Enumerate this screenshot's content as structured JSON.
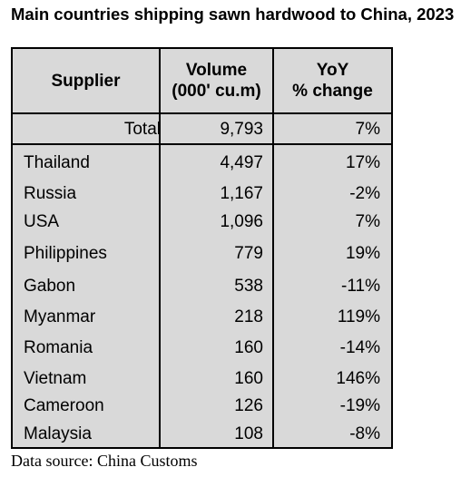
{
  "title": "Main countries shipping sawn hardwood to China, 2023",
  "source": "Data source: China Customs",
  "chart_data": {
    "type": "table",
    "title": "Main countries shipping sawn hardwood to China, 2023",
    "columns": [
      {
        "label": "Supplier"
      },
      {
        "label_line1": "Volume",
        "label_line2": "(000' cu.m)"
      },
      {
        "label_line1": "YoY",
        "label_line2": "% change"
      }
    ],
    "total": {
      "supplier": "Total",
      "volume": "9,793",
      "yoy": "7%"
    },
    "rows": [
      {
        "supplier": "Thailand",
        "volume": "4,497",
        "yoy": "17%"
      },
      {
        "supplier": "Russia",
        "volume": "1,167",
        "yoy": "-2%"
      },
      {
        "supplier": "USA",
        "volume": "1,096",
        "yoy": "7%"
      },
      {
        "supplier": "Philippines",
        "volume": "779",
        "yoy": "19%"
      },
      {
        "supplier": "Gabon",
        "volume": "538",
        "yoy": "-11%"
      },
      {
        "supplier": "Myanmar",
        "volume": "218",
        "yoy": "119%"
      },
      {
        "supplier": "Romania",
        "volume": "160",
        "yoy": "-14%"
      },
      {
        "supplier": "Vietnam",
        "volume": "160",
        "yoy": "146%"
      },
      {
        "supplier": "Cameroon",
        "volume": "126",
        "yoy": "-19%"
      },
      {
        "supplier": "Malaysia",
        "volume": "108",
        "yoy": "-8%"
      }
    ],
    "colors": {
      "background": "#d9d9d9",
      "border": "#000000"
    }
  }
}
